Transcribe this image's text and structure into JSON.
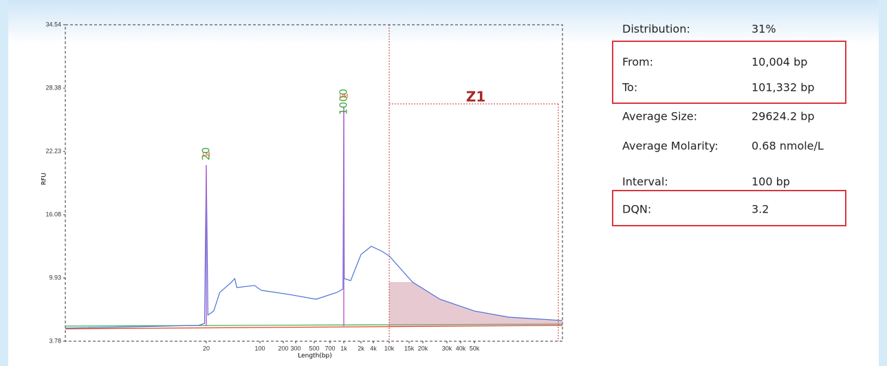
{
  "chart_data": {
    "type": "line",
    "ylabel": "RFU",
    "xlabel": "Length(bp)",
    "ylim": [
      3.78,
      34.54
    ],
    "yticks": [
      3.78,
      9.93,
      16.08,
      22.23,
      28.38,
      34.54
    ],
    "xlim": [
      0.3,
      200000
    ],
    "xticks": [
      20,
      100,
      200,
      300,
      500,
      700,
      {
        "value": 1000,
        "label": "1k"
      },
      {
        "value": 2000,
        "label": "2k"
      },
      {
        "value": 4000,
        "label": "4k"
      },
      {
        "value": 10000,
        "label": "10k"
      },
      {
        "value": 15000,
        "label": "15k"
      },
      {
        "value": 20000,
        "label": "20k"
      },
      {
        "value": 30000,
        "label": "30k"
      },
      {
        "value": 40000,
        "label": "40k"
      },
      {
        "value": 50000,
        "label": "50k"
      }
    ],
    "series": [
      {
        "color": "#4a6fd8",
        "x": [
          0.3,
          16,
          19,
          20,
          21,
          25,
          30,
          41,
          47,
          50,
          85,
          104,
          240,
          520,
          840,
          980,
          1000,
          1020,
          1320,
          2000,
          3560,
          6450,
          10000,
          16100,
          26700,
          50000,
          85900,
          200000
        ],
        "values": [
          5.05,
          5.32,
          5.52,
          20.9,
          6.32,
          6.72,
          8.53,
          9.4,
          9.87,
          9.0,
          9.2,
          8.73,
          8.33,
          7.86,
          8.53,
          8.86,
          26.59,
          9.87,
          9.67,
          12.21,
          13.01,
          12.54,
          12.07,
          9.53,
          7.86,
          6.72,
          6.12,
          5.79
        ]
      }
    ],
    "markers": [
      {
        "x": 20,
        "text": "20",
        "tag": "LM"
      },
      {
        "x": 1000,
        "text": "1000",
        "tag": "UM"
      }
    ],
    "zone": {
      "label": "Z1",
      "from": 10004,
      "color": "#c98a9a"
    }
  },
  "stats": {
    "rows": [
      [
        "Distribution:",
        "31%"
      ],
      [
        "From:",
        "10,004 bp"
      ],
      [
        "To:",
        "101,332 bp"
      ],
      [
        "Average Size:",
        "29624.2 bp"
      ],
      [
        "Average Molarity:",
        "0.68 nmole/L"
      ],
      [
        "Interval:",
        "100 bp"
      ],
      [
        "DQN:",
        "3.2"
      ]
    ]
  }
}
